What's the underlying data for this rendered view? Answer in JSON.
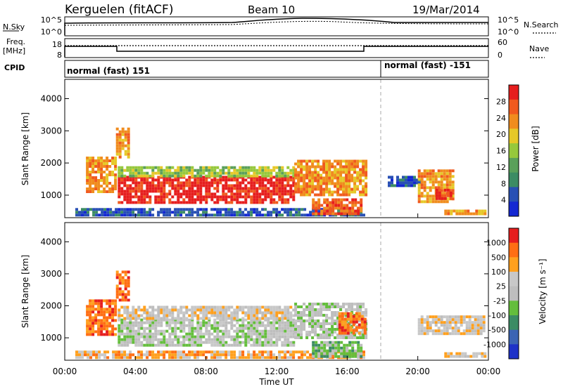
{
  "header": {
    "site": "Kerguelen (fitACF)",
    "beam": "Beam 10",
    "date": "19/Mar/2014"
  },
  "summary_panels": {
    "nsky_label": "N.Sky",
    "nsky_ticks": [
      "10^5",
      "10^0"
    ],
    "nsearch_label": "N.Search",
    "nsearch_ticks": [
      "10^5",
      "10^0"
    ],
    "freq_label_line1": "Freq.",
    "freq_label_line2": "[MHz]",
    "freq_ticks": [
      "18",
      "8"
    ],
    "nave_label": "Nave",
    "nave_ticks": [
      "60",
      "0"
    ],
    "cpid_label": "CPID",
    "cpid_segments": [
      "normal (fast) 151",
      "normal (fast) -151"
    ]
  },
  "colors": {
    "power_scale": [
      "#1428d2",
      "#2850b4",
      "#3c8c64",
      "#5aa05a",
      "#96c83c",
      "#e6c828",
      "#f08c1e",
      "#f05a1e",
      "#e61e1e"
    ],
    "velocity_scale": [
      "#1e32c8",
      "#3c64b4",
      "#3c8c64",
      "#64be3c",
      "#bebebe",
      "#c8c8c8",
      "#ffa01e",
      "#ff6e14",
      "#e61e1e"
    ]
  },
  "chart_data": [
    {
      "type": "heatmap",
      "name": "power",
      "ylabel": "Slant Range [km]",
      "yticks": [
        "4000",
        "3000",
        "2000",
        "1000"
      ],
      "ylim": [
        300,
        4600
      ],
      "colorbar_label": "Power [dB]",
      "colorbar_ticks": [
        "28",
        "24",
        "20",
        "16",
        "12",
        "8",
        "4"
      ],
      "regions": [
        {
          "t0": 0.6,
          "t1": 17.0,
          "r0": 350,
          "r1": 600,
          "level": 1
        },
        {
          "t0": 1.2,
          "t1": 2.8,
          "r0": 1100,
          "r1": 2200,
          "level": 6
        },
        {
          "t0": 2.9,
          "t1": 3.6,
          "r0": 2200,
          "r1": 3100,
          "level": 6
        },
        {
          "t0": 3.0,
          "t1": 13.0,
          "r0": 800,
          "r1": 1600,
          "level": 8
        },
        {
          "t0": 3.0,
          "t1": 13.0,
          "r0": 1600,
          "r1": 1900,
          "level": 4
        },
        {
          "t0": 13.0,
          "t1": 17.0,
          "r0": 1000,
          "r1": 2100,
          "level": 6
        },
        {
          "t0": 14.0,
          "t1": 16.8,
          "r0": 400,
          "r1": 900,
          "level": 7
        },
        {
          "t0": 18.3,
          "t1": 20.2,
          "r0": 1300,
          "r1": 1600,
          "level": 1
        },
        {
          "t0": 20.0,
          "t1": 22.0,
          "r0": 800,
          "r1": 1800,
          "level": 6
        },
        {
          "t0": 21.0,
          "t1": 21.8,
          "r0": 900,
          "r1": 1200,
          "level": 8
        },
        {
          "t0": 21.5,
          "t1": 23.8,
          "r0": 400,
          "r1": 550,
          "level": 6
        }
      ]
    },
    {
      "type": "heatmap",
      "name": "velocity",
      "ylabel": "Slant Range [km]",
      "yticks": [
        "4000",
        "3000",
        "2000",
        "1000"
      ],
      "ylim": [
        300,
        4600
      ],
      "xlabel": "Time UT",
      "xticks": [
        "00:00",
        "04:00",
        "08:00",
        "12:00",
        "16:00",
        "20:00",
        "00:00"
      ],
      "xlim": [
        0,
        24
      ],
      "colorbar_label": "Velocity [m s⁻¹]",
      "colorbar_ticks": [
        "1000",
        "500",
        "100",
        "25",
        "-25",
        "-100",
        "-500",
        "-1000"
      ],
      "regions": [
        {
          "t0": 0.6,
          "t1": 17.0,
          "r0": 350,
          "r1": 600,
          "level": 6
        },
        {
          "t0": 1.2,
          "t1": 2.8,
          "r0": 1100,
          "r1": 2200,
          "level": 7
        },
        {
          "t0": 2.9,
          "t1": 3.6,
          "r0": 2200,
          "r1": 3100,
          "level": 7
        },
        {
          "t0": 3.0,
          "t1": 13.0,
          "r0": 800,
          "r1": 1600,
          "level": 4
        },
        {
          "t0": 3.0,
          "t1": 13.0,
          "r0": 1600,
          "r1": 2000,
          "level": 5
        },
        {
          "t0": 13.0,
          "t1": 17.0,
          "r0": 1000,
          "r1": 2100,
          "level": 4
        },
        {
          "t0": 15.5,
          "t1": 17.0,
          "r0": 1100,
          "r1": 1800,
          "level": 7
        },
        {
          "t0": 14.0,
          "t1": 16.8,
          "r0": 400,
          "r1": 900,
          "level": 3
        },
        {
          "t0": 20.0,
          "t1": 23.8,
          "r0": 1100,
          "r1": 1700,
          "level": 5
        },
        {
          "t0": 21.5,
          "t1": 23.8,
          "r0": 400,
          "r1": 550,
          "level": 5
        }
      ]
    }
  ]
}
